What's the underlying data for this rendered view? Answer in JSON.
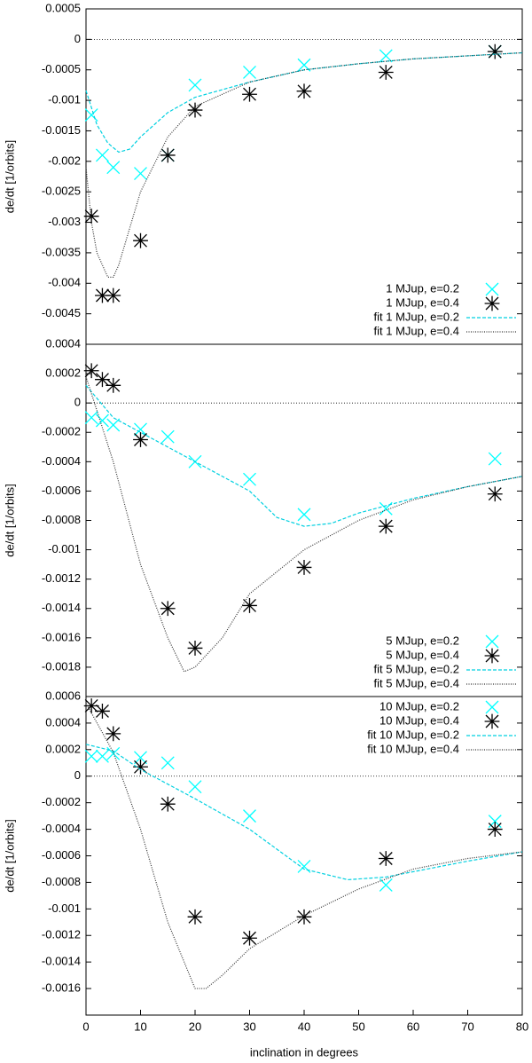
{
  "chart_data": [
    {
      "type": "line",
      "ylabel": "de/dt [1/orbits]",
      "xlim": [
        0,
        80
      ],
      "ylim": [
        -0.005,
        0.0005
      ],
      "yticks": [
        0.0005,
        0,
        -0.0005,
        -0.001,
        -0.0015,
        -0.002,
        -0.0025,
        -0.003,
        -0.0035,
        -0.004,
        -0.0045
      ],
      "zero_line": true,
      "legend": "lower right",
      "series": [
        {
          "name": "1 MJup, e=0.2",
          "color": "#00ffff",
          "marker": "x",
          "x": [
            1,
            3,
            5,
            10,
            15,
            20,
            30,
            40,
            55,
            75
          ],
          "values": [
            -0.00124,
            -0.0019,
            -0.0021,
            -0.0022,
            -0.0019,
            -0.00075,
            -0.00054,
            -0.00042,
            -0.00027,
            -0.0002
          ]
        },
        {
          "name": "1 MJup, e=0.4",
          "color": "#000000",
          "marker": "star",
          "x": [
            1,
            3,
            5,
            10,
            15,
            20,
            30,
            40,
            55,
            75
          ],
          "values": [
            -0.0029,
            -0.0042,
            -0.0042,
            -0.0033,
            -0.0019,
            -0.00116,
            -0.0009,
            -0.00085,
            -0.00054,
            -0.0002
          ]
        },
        {
          "name": "fit 1 MJup, e=0.2",
          "color": "#00d0e0",
          "dash": "dashed",
          "x": [
            0,
            2,
            4,
            6,
            8,
            10,
            15,
            20,
            30,
            40,
            50,
            60,
            70,
            80
          ],
          "values": [
            -0.00084,
            -0.0014,
            -0.0017,
            -0.00185,
            -0.0018,
            -0.0016,
            -0.0012,
            -0.00095,
            -0.0007,
            -0.0005,
            -0.0004,
            -0.00032,
            -0.00027,
            -0.00022
          ]
        },
        {
          "name": "fit 1 MJup, e=0.4",
          "color": "#333333",
          "dash": "dotted",
          "x": [
            0,
            1,
            2,
            4,
            5,
            6,
            8,
            10,
            15,
            20,
            30,
            40,
            50,
            60,
            70,
            80
          ],
          "values": [
            -0.0021,
            -0.003,
            -0.0035,
            -0.0039,
            -0.0039,
            -0.0037,
            -0.0031,
            -0.0025,
            -0.0016,
            -0.0011,
            -0.0007,
            -0.0005,
            -0.0004,
            -0.00032,
            -0.00027,
            -0.00022
          ]
        }
      ]
    },
    {
      "type": "line",
      "ylabel": "de/dt [1/orbits]",
      "xlim": [
        0,
        80
      ],
      "ylim": [
        -0.002,
        0.0004
      ],
      "yticks": [
        0.0004,
        0.0002,
        0,
        -0.0002,
        -0.0004,
        -0.0006,
        -0.0008,
        -0.001,
        -0.0012,
        -0.0014,
        -0.0016,
        -0.0018
      ],
      "zero_line": true,
      "legend": "lower right",
      "series": [
        {
          "name": "5 MJup, e=0.2",
          "color": "#00ffff",
          "marker": "x",
          "x": [
            1,
            3,
            5,
            10,
            15,
            20,
            30,
            40,
            55,
            75
          ],
          "values": [
            -0.0001,
            -0.00012,
            -0.00015,
            -0.00018,
            -0.00023,
            -0.0004,
            -0.00052,
            -0.00076,
            -0.00072,
            -0.00038
          ]
        },
        {
          "name": "5 MJup, e=0.4",
          "color": "#000000",
          "marker": "star",
          "x": [
            1,
            3,
            5,
            10,
            15,
            20,
            30,
            40,
            55,
            75
          ],
          "values": [
            0.00022,
            0.00016,
            0.00012,
            -0.00025,
            -0.0014,
            -0.00167,
            -0.00138,
            -0.00112,
            -0.00084,
            -0.00062
          ]
        },
        {
          "name": "fit 5 MJup, e=0.2",
          "color": "#00d0e0",
          "dash": "dashed",
          "x": [
            0,
            5,
            10,
            20,
            30,
            35,
            40,
            45,
            50,
            60,
            70,
            80
          ],
          "values": [
            0.00012,
            -0.0001,
            -0.0002,
            -0.0004,
            -0.0006,
            -0.00078,
            -0.00084,
            -0.00082,
            -0.00075,
            -0.00065,
            -0.00057,
            -0.0005
          ]
        },
        {
          "name": "fit 5 MJup, e=0.4",
          "color": "#333333",
          "dash": "dotted",
          "x": [
            0,
            5,
            10,
            15,
            18,
            20,
            25,
            30,
            40,
            50,
            60,
            70,
            80
          ],
          "values": [
            0.00018,
            -0.0004,
            -0.0011,
            -0.0016,
            -0.00183,
            -0.0018,
            -0.0016,
            -0.0013,
            -0.001,
            -0.0008,
            -0.00066,
            -0.00057,
            -0.0005
          ]
        }
      ]
    },
    {
      "type": "line",
      "ylabel": "de/dt [1/orbits]",
      "xlabel": "inclination in degrees",
      "xlim": [
        0,
        80
      ],
      "xticks": [
        0,
        10,
        20,
        30,
        40,
        50,
        60,
        70,
        80
      ],
      "ylim": [
        -0.0018,
        0.0006
      ],
      "yticks": [
        0.0006,
        0.0004,
        0.0002,
        0,
        -0.0002,
        -0.0004,
        -0.0006,
        -0.0008,
        -0.001,
        -0.0012,
        -0.0014,
        -0.0016
      ],
      "zero_line": true,
      "legend": "upper right",
      "series": [
        {
          "name": "10 MJup, e=0.2",
          "color": "#00ffff",
          "marker": "x",
          "x": [
            1,
            3,
            5,
            10,
            15,
            20,
            30,
            40,
            55,
            75
          ],
          "values": [
            0.00015,
            0.00015,
            0.00017,
            0.00014,
            0.0001,
            -8e-05,
            -0.0003,
            -0.00068,
            -0.00082,
            -0.00034
          ]
        },
        {
          "name": "10 MJup, e=0.4",
          "color": "#000000",
          "marker": "star",
          "x": [
            1,
            3,
            5,
            10,
            15,
            20,
            30,
            40,
            55,
            75
          ],
          "values": [
            0.00053,
            0.00049,
            0.00032,
            7e-05,
            -0.00021,
            -0.00106,
            -0.00122,
            -0.00106,
            -0.00062,
            -0.0004
          ]
        },
        {
          "name": "fit 10 MJup, e=0.2",
          "color": "#00d0e0",
          "dash": "dashed",
          "x": [
            0,
            5,
            10,
            20,
            30,
            40,
            48,
            55,
            60,
            70,
            80
          ],
          "values": [
            0.00024,
            0.00019,
            5e-05,
            -0.00017,
            -0.0004,
            -0.0007,
            -0.00078,
            -0.00076,
            -0.00072,
            -0.00064,
            -0.00057
          ]
        },
        {
          "name": "fit 10 MJup, e=0.4",
          "color": "#333333",
          "dash": "dotted",
          "x": [
            0,
            5,
            10,
            15,
            20,
            22,
            25,
            30,
            40,
            50,
            60,
            70,
            80
          ],
          "values": [
            0.00055,
            0.00018,
            -0.0004,
            -0.0011,
            -0.0016,
            -0.0016,
            -0.0015,
            -0.0013,
            -0.00105,
            -0.00085,
            -0.0007,
            -0.00062,
            -0.00057
          ]
        }
      ]
    }
  ]
}
